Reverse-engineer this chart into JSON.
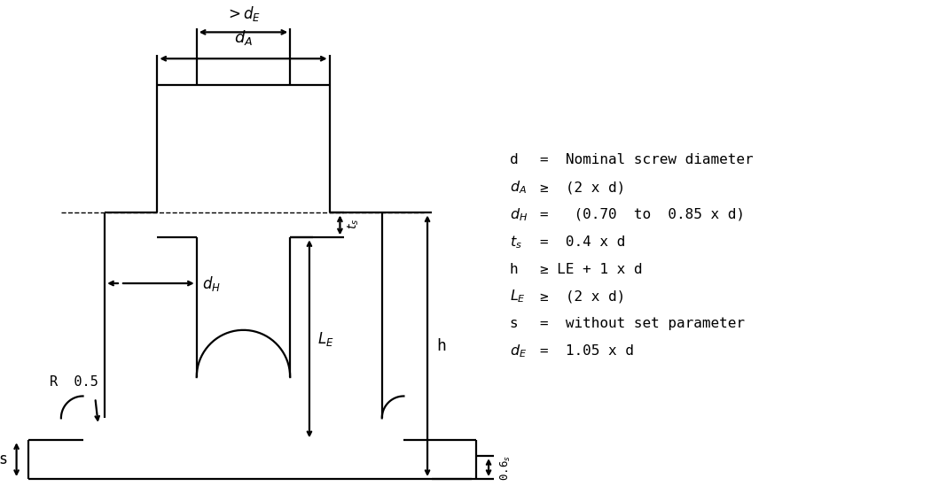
{
  "bg_color": "#ffffff",
  "line_color": "#000000",
  "line_width": 1.6,
  "annotations": {
    "d_A": "$d_A$",
    "d_E": "$>d_E$",
    "d_H": "$d_H$",
    "t_s": "$t_s$",
    "h": "h",
    "L_E": "$L_E$",
    "s": "s",
    "R_05": "R  0.5",
    "zero6s": "0.6$_s$"
  },
  "legend_lines": [
    [
      "d",
      "=  Nominal screw diameter"
    ],
    [
      "$d_A$",
      "≥  (2 x d)"
    ],
    [
      "$d_H$",
      "=   (0.70  to  0.85 x d)"
    ],
    [
      "$t_s$",
      "=  0.4 x d"
    ],
    [
      "h",
      "≥ LE + 1 x d"
    ],
    [
      "$L_E$",
      "≥  (2 x d)"
    ],
    [
      "s",
      "=  without set parameter"
    ],
    [
      "$d_E$",
      "=  1.05 x d"
    ]
  ]
}
